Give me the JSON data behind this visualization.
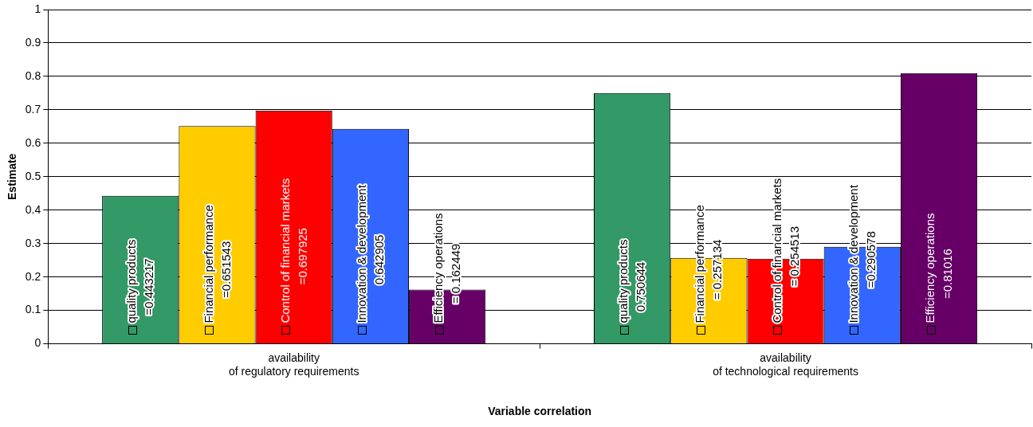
{
  "chart_data": {
    "type": "bar",
    "xlabel": "Variable correlation",
    "ylabel": "Estimate",
    "categories": [
      "availability\nof regulatory requirements",
      "availability\nof technological requirements"
    ],
    "series": [
      {
        "name": "quality products",
        "color": "#339966",
        "values": [
          0.443217,
          0.750644
        ],
        "value_labels": [
          "=0.443217",
          "0.750644"
        ]
      },
      {
        "name": "Financial performance",
        "color": "#ffcc00",
        "values": [
          0.651543,
          0.257134
        ],
        "value_labels": [
          "=0.651543",
          "= 0.257134"
        ]
      },
      {
        "name": "Control of financial markets",
        "color": "#ff0000",
        "values": [
          0.697925,
          0.254513
        ],
        "value_labels": [
          "=0.697925",
          "= 0.254513"
        ]
      },
      {
        "name": "Innovation & development",
        "color": "#3366ff",
        "values": [
          0.642905,
          0.290578
        ],
        "value_labels": [
          "0.642905",
          "=0.290578"
        ]
      },
      {
        "name": "Efficiency operations",
        "color": "#660066",
        "values": [
          0.162449,
          0.81016
        ],
        "value_labels": [
          "= 0.162449",
          "=0.81016"
        ]
      }
    ],
    "ylim": [
      0,
      1
    ],
    "yticks": [
      0,
      0.1,
      0.2,
      0.3,
      0.4,
      0.5,
      0.6,
      0.7,
      0.8,
      0.9,
      1
    ],
    "grid": "y",
    "legend": false
  }
}
